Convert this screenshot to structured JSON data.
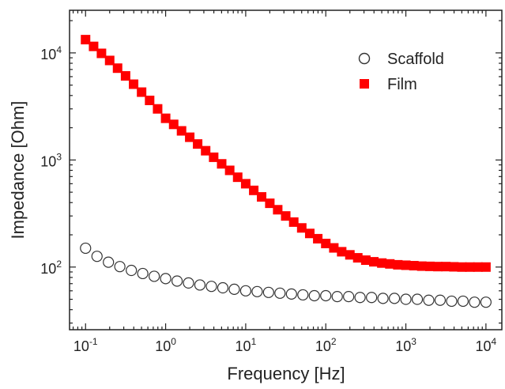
{
  "chart_data": {
    "type": "scatter",
    "title": "",
    "xlabel": "Frequency [Hz]",
    "ylabel": "Impedance [Ohm]",
    "xscale": "log",
    "yscale": "log",
    "xlim": [
      0.0631,
      15800
    ],
    "ylim": [
      26,
      25000
    ],
    "x_ticks": [
      {
        "value": 0.1,
        "base": "10",
        "exp": "-1"
      },
      {
        "value": 1,
        "base": "10",
        "exp": "0"
      },
      {
        "value": 10,
        "base": "10",
        "exp": "1"
      },
      {
        "value": 100,
        "base": "10",
        "exp": "2"
      },
      {
        "value": 1000,
        "base": "10",
        "exp": "3"
      },
      {
        "value": 10000,
        "base": "10",
        "exp": "4"
      }
    ],
    "y_ticks": [
      {
        "value": 100,
        "base": "10",
        "exp": "2"
      },
      {
        "value": 1000,
        "base": "10",
        "exp": "3"
      },
      {
        "value": 10000,
        "base": "10",
        "exp": "4"
      }
    ],
    "grid": false,
    "legend_position": "top-right",
    "series": [
      {
        "name": "Scaffold",
        "marker": "open-circle",
        "color": "#333333",
        "x": [
          0.1,
          0.139,
          0.193,
          0.268,
          0.373,
          0.518,
          0.72,
          1.0,
          1.39,
          1.93,
          2.68,
          3.73,
          5.18,
          7.2,
          10,
          13.9,
          19.3,
          26.8,
          37.3,
          51.8,
          72,
          100,
          139,
          193,
          268,
          373,
          518,
          720,
          1000,
          1390,
          1930,
          2680,
          3730,
          5180,
          7200,
          10000
        ],
        "y": [
          150,
          126,
          111,
          101,
          93,
          87,
          82,
          78,
          74,
          71,
          68,
          66,
          64,
          62,
          60,
          59,
          58,
          57,
          56,
          55,
          54,
          54,
          53,
          53,
          52,
          52,
          51,
          51,
          50,
          50,
          49,
          49,
          48,
          48,
          47,
          47
        ]
      },
      {
        "name": "Film",
        "marker": "filled-square",
        "color": "#ff0000",
        "x": [
          0.1,
          0.126,
          0.158,
          0.2,
          0.251,
          0.316,
          0.398,
          0.501,
          0.631,
          0.794,
          1.0,
          1.26,
          1.58,
          2.0,
          2.51,
          3.16,
          3.98,
          5.01,
          6.31,
          7.94,
          10,
          12.6,
          15.8,
          20,
          25.1,
          31.6,
          39.8,
          50.1,
          63.1,
          79.4,
          100,
          126,
          158,
          200,
          251,
          316,
          398,
          501,
          631,
          794,
          1000,
          1260,
          1580,
          2000,
          2510,
          3160,
          3980,
          5010,
          6310,
          7940,
          10000
        ],
        "y": [
          13300,
          11500,
          9900,
          8500,
          7200,
          6100,
          5100,
          4300,
          3600,
          3000,
          2450,
          2150,
          1870,
          1630,
          1410,
          1220,
          1060,
          920,
          800,
          690,
          600,
          520,
          452,
          394,
          343,
          300,
          263,
          232,
          206,
          184,
          166,
          151,
          139,
          130,
          122,
          116,
          112,
          109,
          107,
          105,
          104,
          103,
          102,
          101.5,
          101,
          101,
          100.5,
          100,
          100,
          100,
          100
        ]
      }
    ]
  }
}
